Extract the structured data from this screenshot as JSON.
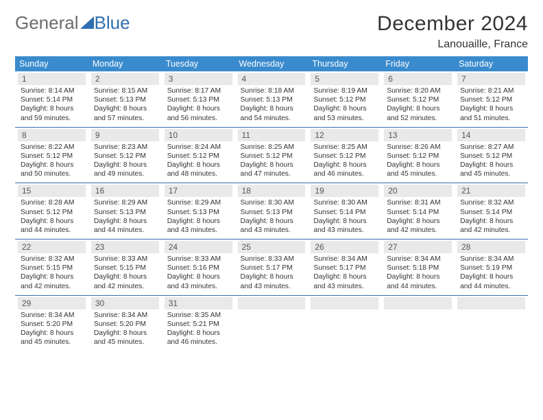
{
  "brand": {
    "part1": "General",
    "part2": "Blue"
  },
  "title": "December 2024",
  "subtitle": "Lanouaille, France",
  "colors": {
    "header_bg": "#3a8bcd",
    "header_text": "#ffffff",
    "row_divider": "#3a6ea8",
    "daynum_bg": "#e9e9e9",
    "daynum_text": "#555555",
    "body_text": "#333333",
    "logo_gray": "#6b6b6b",
    "logo_blue": "#2f6fb0",
    "page_bg": "#ffffff"
  },
  "typography": {
    "title_fontsize": 30,
    "subtitle_fontsize": 16,
    "header_fontsize": 12.5,
    "daynum_fontsize": 12,
    "cell_fontsize": 10.3,
    "font_family": "Arial"
  },
  "weekdays": [
    "Sunday",
    "Monday",
    "Tuesday",
    "Wednesday",
    "Thursday",
    "Friday",
    "Saturday"
  ],
  "weeks": [
    [
      {
        "n": "1",
        "sunrise": "Sunrise: 8:14 AM",
        "sunset": "Sunset: 5:14 PM",
        "dl1": "Daylight: 8 hours",
        "dl2": "and 59 minutes."
      },
      {
        "n": "2",
        "sunrise": "Sunrise: 8:15 AM",
        "sunset": "Sunset: 5:13 PM",
        "dl1": "Daylight: 8 hours",
        "dl2": "and 57 minutes."
      },
      {
        "n": "3",
        "sunrise": "Sunrise: 8:17 AM",
        "sunset": "Sunset: 5:13 PM",
        "dl1": "Daylight: 8 hours",
        "dl2": "and 56 minutes."
      },
      {
        "n": "4",
        "sunrise": "Sunrise: 8:18 AM",
        "sunset": "Sunset: 5:13 PM",
        "dl1": "Daylight: 8 hours",
        "dl2": "and 54 minutes."
      },
      {
        "n": "5",
        "sunrise": "Sunrise: 8:19 AM",
        "sunset": "Sunset: 5:12 PM",
        "dl1": "Daylight: 8 hours",
        "dl2": "and 53 minutes."
      },
      {
        "n": "6",
        "sunrise": "Sunrise: 8:20 AM",
        "sunset": "Sunset: 5:12 PM",
        "dl1": "Daylight: 8 hours",
        "dl2": "and 52 minutes."
      },
      {
        "n": "7",
        "sunrise": "Sunrise: 8:21 AM",
        "sunset": "Sunset: 5:12 PM",
        "dl1": "Daylight: 8 hours",
        "dl2": "and 51 minutes."
      }
    ],
    [
      {
        "n": "8",
        "sunrise": "Sunrise: 8:22 AM",
        "sunset": "Sunset: 5:12 PM",
        "dl1": "Daylight: 8 hours",
        "dl2": "and 50 minutes."
      },
      {
        "n": "9",
        "sunrise": "Sunrise: 8:23 AM",
        "sunset": "Sunset: 5:12 PM",
        "dl1": "Daylight: 8 hours",
        "dl2": "and 49 minutes."
      },
      {
        "n": "10",
        "sunrise": "Sunrise: 8:24 AM",
        "sunset": "Sunset: 5:12 PM",
        "dl1": "Daylight: 8 hours",
        "dl2": "and 48 minutes."
      },
      {
        "n": "11",
        "sunrise": "Sunrise: 8:25 AM",
        "sunset": "Sunset: 5:12 PM",
        "dl1": "Daylight: 8 hours",
        "dl2": "and 47 minutes."
      },
      {
        "n": "12",
        "sunrise": "Sunrise: 8:25 AM",
        "sunset": "Sunset: 5:12 PM",
        "dl1": "Daylight: 8 hours",
        "dl2": "and 46 minutes."
      },
      {
        "n": "13",
        "sunrise": "Sunrise: 8:26 AM",
        "sunset": "Sunset: 5:12 PM",
        "dl1": "Daylight: 8 hours",
        "dl2": "and 45 minutes."
      },
      {
        "n": "14",
        "sunrise": "Sunrise: 8:27 AM",
        "sunset": "Sunset: 5:12 PM",
        "dl1": "Daylight: 8 hours",
        "dl2": "and 45 minutes."
      }
    ],
    [
      {
        "n": "15",
        "sunrise": "Sunrise: 8:28 AM",
        "sunset": "Sunset: 5:12 PM",
        "dl1": "Daylight: 8 hours",
        "dl2": "and 44 minutes."
      },
      {
        "n": "16",
        "sunrise": "Sunrise: 8:29 AM",
        "sunset": "Sunset: 5:13 PM",
        "dl1": "Daylight: 8 hours",
        "dl2": "and 44 minutes."
      },
      {
        "n": "17",
        "sunrise": "Sunrise: 8:29 AM",
        "sunset": "Sunset: 5:13 PM",
        "dl1": "Daylight: 8 hours",
        "dl2": "and 43 minutes."
      },
      {
        "n": "18",
        "sunrise": "Sunrise: 8:30 AM",
        "sunset": "Sunset: 5:13 PM",
        "dl1": "Daylight: 8 hours",
        "dl2": "and 43 minutes."
      },
      {
        "n": "19",
        "sunrise": "Sunrise: 8:30 AM",
        "sunset": "Sunset: 5:14 PM",
        "dl1": "Daylight: 8 hours",
        "dl2": "and 43 minutes."
      },
      {
        "n": "20",
        "sunrise": "Sunrise: 8:31 AM",
        "sunset": "Sunset: 5:14 PM",
        "dl1": "Daylight: 8 hours",
        "dl2": "and 42 minutes."
      },
      {
        "n": "21",
        "sunrise": "Sunrise: 8:32 AM",
        "sunset": "Sunset: 5:14 PM",
        "dl1": "Daylight: 8 hours",
        "dl2": "and 42 minutes."
      }
    ],
    [
      {
        "n": "22",
        "sunrise": "Sunrise: 8:32 AM",
        "sunset": "Sunset: 5:15 PM",
        "dl1": "Daylight: 8 hours",
        "dl2": "and 42 minutes."
      },
      {
        "n": "23",
        "sunrise": "Sunrise: 8:33 AM",
        "sunset": "Sunset: 5:15 PM",
        "dl1": "Daylight: 8 hours",
        "dl2": "and 42 minutes."
      },
      {
        "n": "24",
        "sunrise": "Sunrise: 8:33 AM",
        "sunset": "Sunset: 5:16 PM",
        "dl1": "Daylight: 8 hours",
        "dl2": "and 43 minutes."
      },
      {
        "n": "25",
        "sunrise": "Sunrise: 8:33 AM",
        "sunset": "Sunset: 5:17 PM",
        "dl1": "Daylight: 8 hours",
        "dl2": "and 43 minutes."
      },
      {
        "n": "26",
        "sunrise": "Sunrise: 8:34 AM",
        "sunset": "Sunset: 5:17 PM",
        "dl1": "Daylight: 8 hours",
        "dl2": "and 43 minutes."
      },
      {
        "n": "27",
        "sunrise": "Sunrise: 8:34 AM",
        "sunset": "Sunset: 5:18 PM",
        "dl1": "Daylight: 8 hours",
        "dl2": "and 44 minutes."
      },
      {
        "n": "28",
        "sunrise": "Sunrise: 8:34 AM",
        "sunset": "Sunset: 5:19 PM",
        "dl1": "Daylight: 8 hours",
        "dl2": "and 44 minutes."
      }
    ],
    [
      {
        "n": "29",
        "sunrise": "Sunrise: 8:34 AM",
        "sunset": "Sunset: 5:20 PM",
        "dl1": "Daylight: 8 hours",
        "dl2": "and 45 minutes."
      },
      {
        "n": "30",
        "sunrise": "Sunrise: 8:34 AM",
        "sunset": "Sunset: 5:20 PM",
        "dl1": "Daylight: 8 hours",
        "dl2": "and 45 minutes."
      },
      {
        "n": "31",
        "sunrise": "Sunrise: 8:35 AM",
        "sunset": "Sunset: 5:21 PM",
        "dl1": "Daylight: 8 hours",
        "dl2": "and 46 minutes."
      },
      {
        "empty": true
      },
      {
        "empty": true
      },
      {
        "empty": true
      },
      {
        "empty": true
      }
    ]
  ]
}
